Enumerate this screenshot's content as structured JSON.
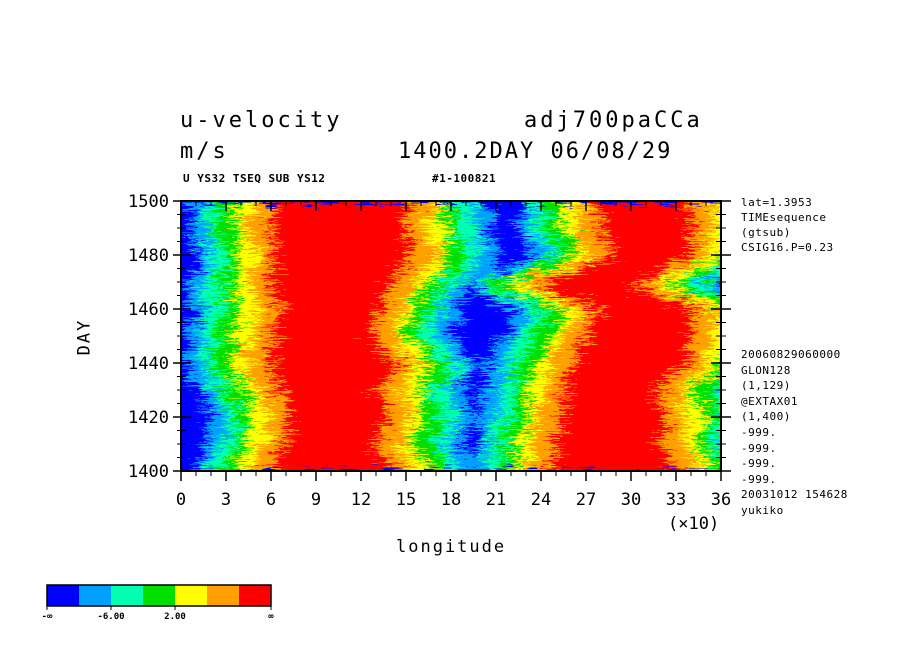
{
  "title_left": "u-velocity",
  "title_right": "adj700paCCa",
  "units": "m/s",
  "datetime": "1400.2DAY 06/08/29",
  "subtitle_left": "U YS32 TSEQ SUB YS12",
  "subtitle_right": "#1-100821",
  "side_info_top": [
    "lat=1.3953",
    "TIMEsequence",
    "(gtsub)",
    "CSIG16.P=0.23"
  ],
  "side_info_bottom": [
    "20060829060000",
    "GLON128",
    "(1,129)",
    "@EXTAX01",
    "(1,400)",
    "-999.",
    "-999.",
    "-999.",
    "-999.",
    "20031012 154628",
    "yukiko"
  ],
  "colors": [
    "#0000ff",
    "#00a0ff",
    "#00ffb0",
    "#00e000",
    "#ffff00",
    "#ffa000",
    "#ff0000"
  ],
  "chart_data": {
    "type": "heatmap",
    "xlabel": "longitude",
    "ylabel": "DAY",
    "x_multiplier_label": "(×10)",
    "xlim": [
      0,
      36
    ],
    "ylim": [
      1400,
      1500
    ],
    "x_ticks": [
      "0",
      "3",
      "6",
      "9",
      "12",
      "15",
      "18",
      "21",
      "24",
      "27",
      "30",
      "33",
      "36"
    ],
    "y_ticks": [
      "1400",
      "1420",
      "1440",
      "1460",
      "1480",
      "1500"
    ],
    "colorbar_labels": [
      "-∞",
      "-6.00",
      "2.00",
      "∞"
    ],
    "level_count": 7,
    "bands": [
      {
        "day": 1400,
        "red": [
          [
            6,
            14.5
          ],
          [
            24.5,
            33
          ]
        ]
      },
      {
        "day": 1410,
        "red": [
          [
            7,
            13
          ],
          [
            25,
            32
          ]
        ]
      },
      {
        "day": 1420,
        "red": [
          [
            7.5,
            14
          ],
          [
            25.5,
            32.5
          ]
        ]
      },
      {
        "day": 1430,
        "red": [
          [
            6.5,
            13
          ],
          [
            25.5,
            31.5
          ]
        ]
      },
      {
        "day": 1440,
        "red": [
          [
            6,
            14.5
          ],
          [
            26,
            33.5
          ]
        ]
      },
      {
        "day": 1450,
        "red": [
          [
            6,
            12.5
          ],
          [
            27,
            34
          ]
        ]
      },
      {
        "day": 1460,
        "red": [
          [
            6.5,
            13
          ],
          [
            28,
            34.5
          ]
        ]
      },
      {
        "day": 1470,
        "red": [
          [
            6,
            14
          ],
          [
            24,
            30
          ]
        ]
      },
      {
        "day": 1480,
        "red": [
          [
            6.5,
            15.5
          ],
          [
            29,
            34
          ]
        ]
      },
      {
        "day": 1490,
        "red": [
          [
            6,
            15
          ],
          [
            28,
            34
          ]
        ]
      },
      {
        "day": 1500,
        "red": [
          [
            6,
            15
          ],
          [
            28,
            34
          ]
        ]
      }
    ]
  }
}
